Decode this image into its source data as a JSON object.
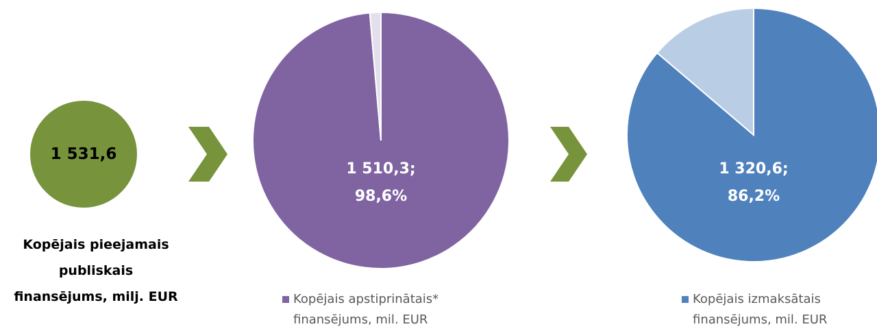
{
  "chart_data": [
    {
      "type": "pie",
      "title": "Kopējais pieejamais publiskais finansējums, milj. EUR",
      "values": [
        1531.6
      ],
      "value_labels": [
        [
          "1 531,6"
        ]
      ],
      "colors": [
        "#77933c"
      ]
    },
    {
      "type": "pie",
      "categories": [
        "Kopējais apstiprinātais* finansējums, mil. EUR",
        null
      ],
      "values": [
        1510.3,
        21.3
      ],
      "value_labels": [
        [
          "1 510,3;",
          "98,6%"
        ],
        null
      ],
      "colors": [
        "#8064a2",
        "#e4dfec"
      ],
      "legend": true
    },
    {
      "type": "pie",
      "categories": [
        "Kopējais izmaksātais finansējums, mil. EUR",
        null
      ],
      "values": [
        1320.6,
        211.0
      ],
      "value_labels": [
        [
          "1 320,6;",
          "86,2%"
        ],
        null
      ],
      "colors": [
        "#4f81bd",
        "#b9cde5"
      ],
      "legend": true
    }
  ]
}
